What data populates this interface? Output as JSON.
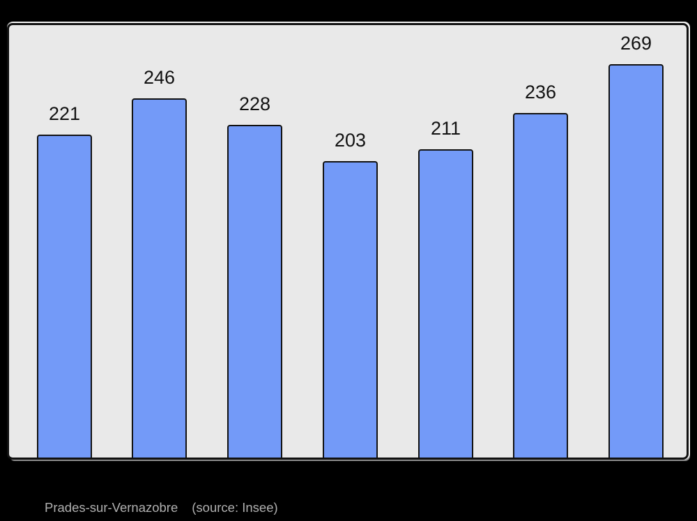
{
  "page": {
    "background_color": "#000000"
  },
  "chart": {
    "panel_fill": "#e9e9e9",
    "panel_border_color": "#111111",
    "bar_fill": "#739af8",
    "bar_border_color": "#111111",
    "value_label_color": "#111111",
    "caption_color": "#b0b0b0"
  },
  "chart_data": {
    "type": "bar",
    "values": [
      221,
      246,
      228,
      203,
      211,
      236,
      269
    ],
    "data_labels": [
      "221",
      "246",
      "228",
      "203",
      "211",
      "236",
      "269"
    ],
    "title": "",
    "xlabel": "",
    "ylabel": "",
    "ylim": [
      0,
      295
    ],
    "grid": false,
    "legend": null,
    "axes_shown": false,
    "caption": "Prades-sur-Vernazobre    (source: Insee)"
  },
  "caption": {
    "commune": "Prades-sur-Vernazobre",
    "source": "(source: Insee)"
  }
}
